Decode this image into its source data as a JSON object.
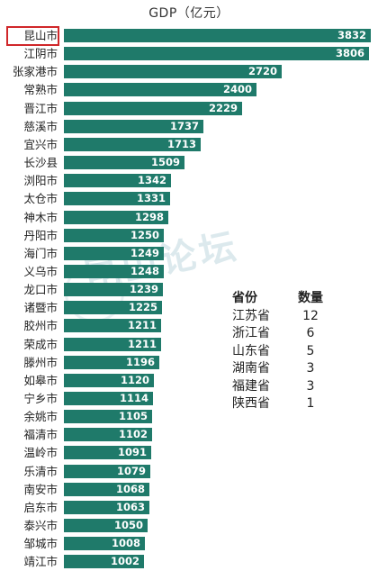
{
  "chart_data": {
    "type": "bar",
    "orientation": "horizontal",
    "title": "GDP（亿元）",
    "categories": [
      "昆山市",
      "江阴市",
      "张家港市",
      "常熟市",
      "晋江市",
      "慈溪市",
      "宜兴市",
      "长沙县",
      "浏阳市",
      "太仓市",
      "神木市",
      "丹阳市",
      "海门市",
      "义乌市",
      "龙口市",
      "诸暨市",
      "胶州市",
      "荣成市",
      "滕州市",
      "如皋市",
      "宁乡市",
      "余姚市",
      "福清市",
      "温岭市",
      "乐清市",
      "南安市",
      "启东市",
      "泰兴市",
      "邹城市",
      "靖江市"
    ],
    "values": [
      3832,
      3806,
      2720,
      2400,
      2229,
      1737,
      1713,
      1509,
      1342,
      1331,
      1298,
      1250,
      1249,
      1248,
      1239,
      1225,
      1211,
      1211,
      1196,
      1120,
      1114,
      1105,
      1102,
      1091,
      1079,
      1068,
      1063,
      1050,
      1008,
      1002
    ],
    "highlighted_category": "昆山市",
    "bar_color": "#1f7a6a",
    "highlight_color": "#d0272a",
    "xlim": [
      0,
      3832
    ]
  },
  "summary_table": {
    "headers": [
      "省份",
      "数量"
    ],
    "rows": [
      [
        "江苏省",
        "12"
      ],
      [
        "浙江省",
        "6"
      ],
      [
        "山东省",
        "5"
      ],
      [
        "湖南省",
        "3"
      ],
      [
        "福建省",
        "3"
      ],
      [
        "陕西省",
        "1"
      ]
    ]
  },
  "watermark_text": "昆山论坛"
}
